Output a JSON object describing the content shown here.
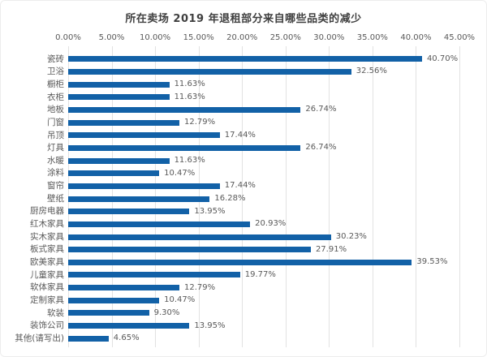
{
  "chart_data": {
    "type": "bar",
    "orientation": "horizontal",
    "title": "所在卖场 2019 年退租部分来自哪些品类的减少",
    "categories": [
      "瓷砖",
      "卫浴",
      "橱柜",
      "衣柜",
      "地板",
      "门窗",
      "吊顶",
      "灯具",
      "水暖",
      "涂料",
      "窗帘",
      "壁纸",
      "厨房电器",
      "红木家具",
      "实木家具",
      "板式家具",
      "欧美家具",
      "儿童家具",
      "软体家具",
      "定制家具",
      "软装",
      "装饰公司",
      "其他(请写出)"
    ],
    "values": [
      40.7,
      32.56,
      11.63,
      11.63,
      26.74,
      12.79,
      17.44,
      26.74,
      11.63,
      10.47,
      17.44,
      16.28,
      13.95,
      20.93,
      30.23,
      27.91,
      39.53,
      19.77,
      12.79,
      10.47,
      9.3,
      13.95,
      4.65
    ],
    "value_labels": [
      "40.70%",
      "32.56%",
      "11.63%",
      "11.63%",
      "26.74%",
      "12.79%",
      "17.44%",
      "26.74%",
      "11.63%",
      "10.47%",
      "17.44%",
      "16.28%",
      "13.95%",
      "20.93%",
      "30.23%",
      "27.91%",
      "39.53%",
      "19.77%",
      "12.79%",
      "10.47%",
      "9.30%",
      "13.95%",
      "4.65%"
    ],
    "x_ticks": [
      "0.00%",
      "5.00%",
      "10.00%",
      "15.00%",
      "20.00%",
      "25.00%",
      "30.00%",
      "35.00%",
      "40.00%",
      "45.00%"
    ],
    "xlim": [
      0,
      45
    ],
    "axis_position": "top",
    "grid": "vertical",
    "legend": "none",
    "colors": {
      "bar": "#1261A7",
      "gridline": "#E2E2E2",
      "label": "#595959",
      "title": "#3F3F3F"
    }
  }
}
